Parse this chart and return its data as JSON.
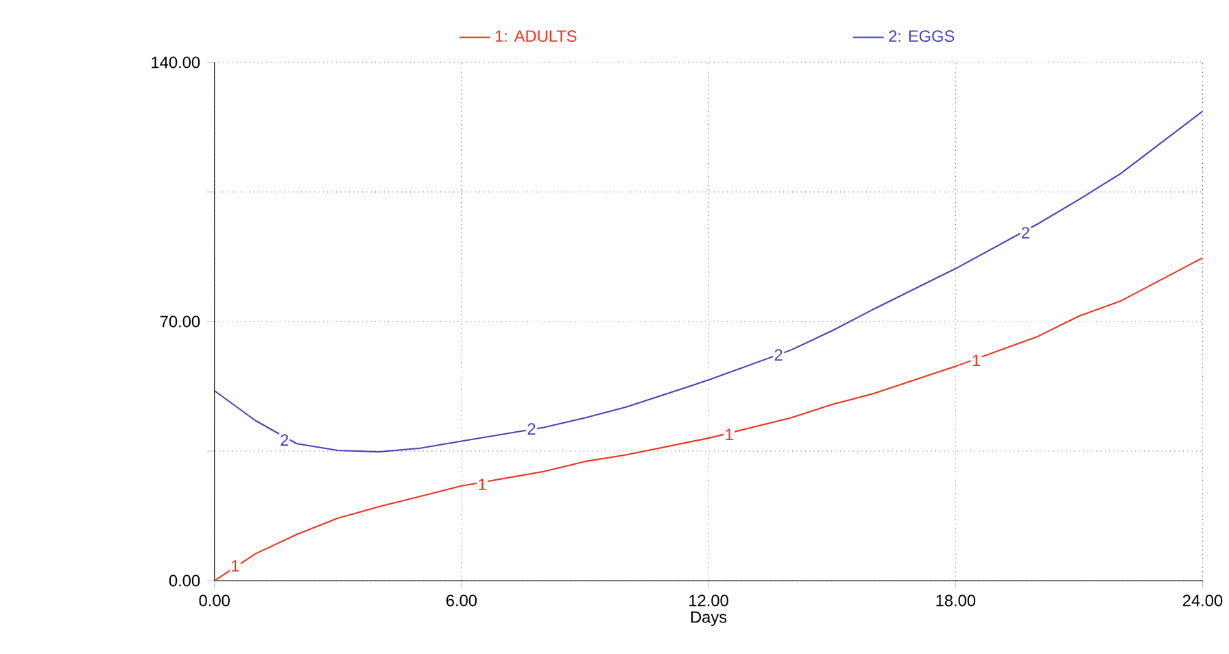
{
  "chart_data": {
    "type": "line",
    "xlabel": "Days",
    "x": [
      0,
      1,
      2,
      3,
      4,
      5,
      6,
      8,
      9,
      10,
      12,
      14,
      15,
      16,
      18,
      20,
      21,
      22,
      24
    ],
    "series": [
      {
        "name": "1: ADULTS",
        "color": "#ee3322",
        "values": [
          0,
          7.3,
          12.5,
          16.9,
          20.0,
          22.8,
          25.6,
          29.5,
          32.2,
          34.0,
          38.5,
          44.0,
          47.6,
          50.5,
          57.9,
          66.0,
          71.5,
          75.5,
          87.2
        ]
      },
      {
        "name": "2: EGGS",
        "color": "#4444bb",
        "values": [
          51.3,
          43.2,
          37.0,
          35.2,
          34.8,
          35.8,
          37.7,
          41.4,
          44.0,
          46.9,
          54.2,
          62.3,
          67.5,
          73.3,
          84.3,
          96.4,
          103.0,
          109.9,
          126.8
        ]
      }
    ],
    "annotations": [
      {
        "text": "1",
        "x": 0.5,
        "y": 4
      },
      {
        "text": "1",
        "x": 6.5,
        "y": 26
      },
      {
        "text": "1",
        "x": 12.5,
        "y": 39.5
      },
      {
        "text": "1",
        "x": 18.5,
        "y": 59.5
      },
      {
        "text": "2",
        "x": 1.7,
        "y": 38
      },
      {
        "text": "2",
        "x": 7.7,
        "y": 41
      },
      {
        "text": "2",
        "x": 13.7,
        "y": 61
      },
      {
        "text": "2",
        "x": 19.7,
        "y": 94
      }
    ],
    "xlim": [
      0,
      24
    ],
    "ylim": [
      0,
      140
    ],
    "xticks": [
      {
        "value": 0,
        "label": "0.00"
      },
      {
        "value": 6,
        "label": "6.00"
      },
      {
        "value": 12,
        "label": "12.00"
      },
      {
        "value": 18,
        "label": "18.00"
      },
      {
        "value": 24,
        "label": "24.00"
      }
    ],
    "yticks": [
      {
        "value": 0,
        "label": "0.00"
      },
      {
        "value": 35,
        "label": null
      },
      {
        "value": 70,
        "label": "70.00"
      },
      {
        "value": 105,
        "label": null
      },
      {
        "value": 140,
        "label": "140.00"
      }
    ],
    "grid": true,
    "legend": "top",
    "marker": "none",
    "line_style": "solid"
  }
}
